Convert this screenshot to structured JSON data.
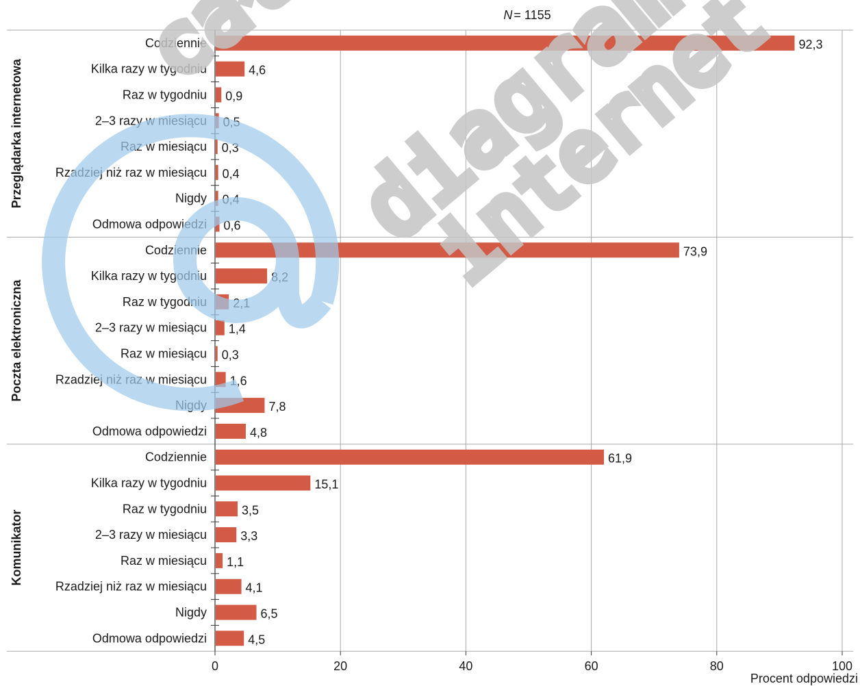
{
  "chart_data": {
    "type": "bar",
    "orientation": "horizontal",
    "annotation_prefix": "N",
    "annotation_value": "= 1155",
    "xlabel": "Procent odpowiedzi",
    "xlim": [
      0,
      100
    ],
    "xticks": [
      "0",
      "20",
      "40",
      "60",
      "80",
      "100"
    ],
    "grid": true,
    "bar_color": "#d35a45",
    "categories": [
      "Codziennie",
      "Kilka razy w tygodniu",
      "Raz w tygodniu",
      "2–3 razy w miesiącu",
      "Raz w miesiącu",
      "Rzadziej niż raz w miesiącu",
      "Nigdy",
      "Odmowa odpowiedzi"
    ],
    "groups": [
      {
        "name": "Przeglądarka internetowa",
        "values": [
          92.3,
          4.6,
          0.9,
          0.5,
          0.3,
          0.4,
          0.4,
          0.6
        ],
        "labels": [
          "92,3",
          "4,6",
          "0,9",
          "0,5",
          "0,3",
          "0,4",
          "0,4",
          "0,6"
        ]
      },
      {
        "name": "Poczta elektroniczna",
        "values": [
          73.9,
          8.2,
          2.1,
          1.4,
          0.3,
          1.6,
          7.8,
          4.8
        ],
        "labels": [
          "73,9",
          "8,2",
          "2,1",
          "1,4",
          "0,3",
          "1,6",
          "7,8",
          "4,8"
        ]
      },
      {
        "name": "Komunikator",
        "values": [
          61.9,
          15.1,
          3.5,
          3.3,
          1.1,
          4.1,
          6.5,
          4.5
        ],
        "labels": [
          "61,9",
          "15,1",
          "3,5",
          "3,3",
          "1,1",
          "4,1",
          "6,5",
          "4,5"
        ]
      }
    ]
  },
  "watermark": {
    "line1": "całość",
    "line2": "diagram",
    "line3": "internet",
    "at_color": "#9fc9ea"
  }
}
